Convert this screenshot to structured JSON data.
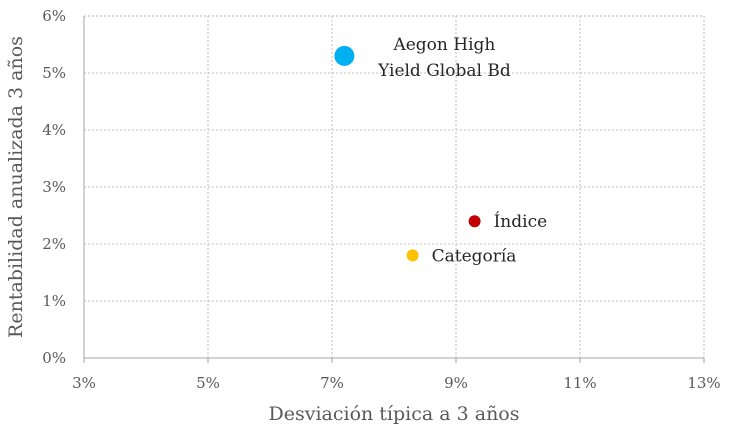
{
  "chart_data": {
    "type": "scatter",
    "title": "",
    "xlabel": "Desviación típica a 3 años",
    "ylabel": "Rentabilidad anualizada 3 años",
    "xlim": [
      3,
      13
    ],
    "ylim": [
      0,
      6
    ],
    "x_ticks": [
      3,
      5,
      7,
      9,
      11,
      13
    ],
    "y_ticks": [
      0,
      1,
      2,
      3,
      4,
      5,
      6
    ],
    "x_tick_labels": [
      "3%",
      "5%",
      "7%",
      "9%",
      "11%",
      "13%"
    ],
    "y_tick_labels": [
      "0%",
      "1%",
      "2%",
      "3%",
      "4%",
      "5%",
      "6%"
    ],
    "grid": true,
    "legend": "none",
    "points": [
      {
        "label_lines": [
          "Aegon High",
          "Yield Global Bd"
        ],
        "x": 7.2,
        "y": 5.3,
        "color": "#00B0F0",
        "emphasis": "large"
      },
      {
        "label_lines": [
          "Índice"
        ],
        "x": 9.3,
        "y": 2.4,
        "color": "#C00000",
        "emphasis": "normal"
      },
      {
        "label_lines": [
          "Categoría"
        ],
        "x": 8.3,
        "y": 1.8,
        "color": "#FFC000",
        "emphasis": "normal"
      }
    ]
  }
}
